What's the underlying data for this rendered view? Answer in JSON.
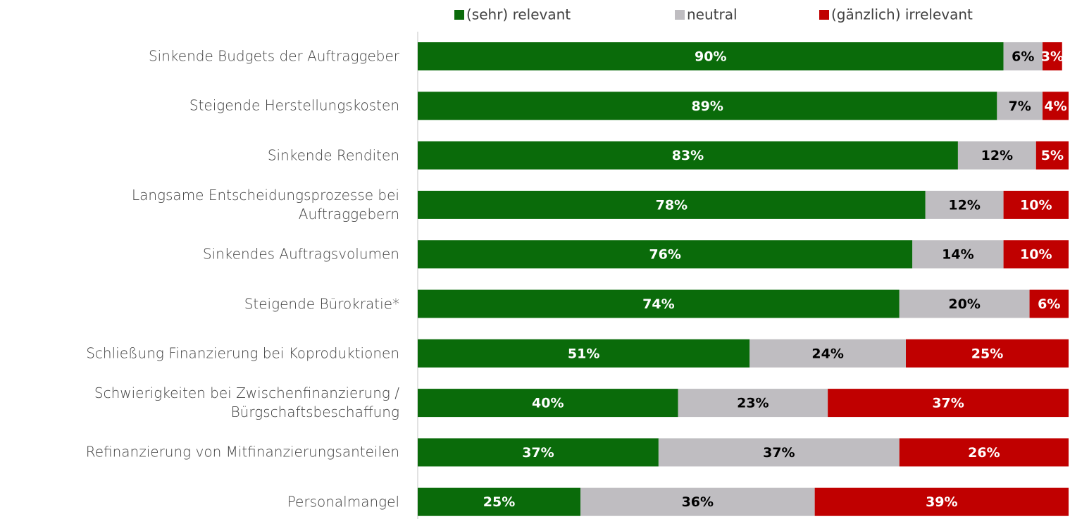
{
  "chart_data": {
    "type": "stacked_bar_horizontal",
    "categories": [
      "Sinkende Budgets der Auftraggeber",
      "Steigende Herstellungskosten",
      "Sinkende Renditen",
      "Langsame Entscheidungsprozesse bei\nAuftraggebern",
      "Sinkendes Auftragsvolumen",
      "Steigende Bürokratie*",
      "Schließung Finanzierung bei Koproduktionen",
      "Schwierigkeiten bei Zwischenfinanzierung /\nBürgschaftsbeschaffung",
      "Refinanzierung von Mitfinanzierungsanteilen",
      "Personalmangel"
    ],
    "series": [
      {
        "name": "(sehr) relevant",
        "color": "#0a6b0a",
        "label_color": "#ffffff",
        "values": [
          90,
          89,
          83,
          78,
          76,
          74,
          51,
          40,
          37,
          25
        ],
        "value_labels": [
          "90%",
          "89%",
          "83%",
          "78%",
          "76%",
          "74%",
          "51%",
          "40%",
          "37%",
          "25%"
        ]
      },
      {
        "name": "neutral",
        "color": "#bfbdc1",
        "label_color": "#000000",
        "values": [
          6,
          7,
          12,
          12,
          14,
          20,
          24,
          23,
          37,
          36
        ],
        "value_labels": [
          "6%",
          "7%",
          "12%",
          "12%",
          "14%",
          "20%",
          "24%",
          "23%",
          "37%",
          "36%"
        ]
      },
      {
        "name": "(gänzlich) irrelevant",
        "color": "#c00000",
        "label_color": "#ffffff",
        "values": [
          3,
          4,
          5,
          10,
          10,
          6,
          25,
          37,
          26,
          39
        ],
        "value_labels": [
          "3%",
          "4%",
          "5%",
          "10%",
          "10%",
          "6%",
          "25%",
          "37%",
          "26%",
          "39%"
        ]
      }
    ],
    "xlim": [
      0,
      100
    ],
    "legend": "top"
  }
}
